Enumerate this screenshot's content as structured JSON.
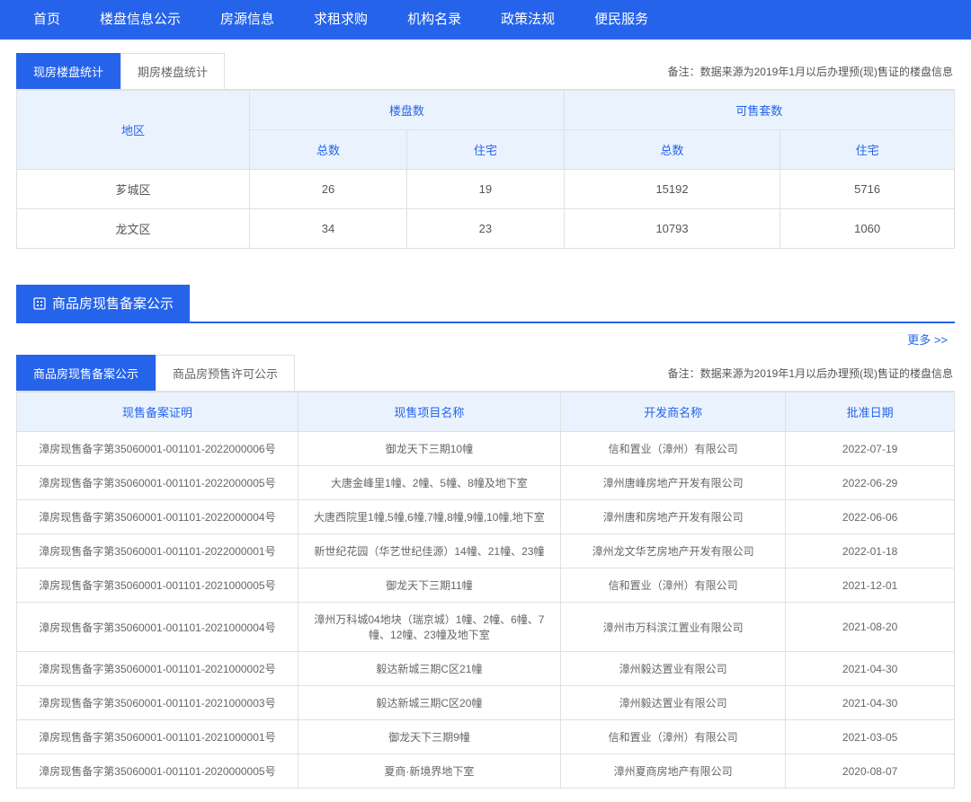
{
  "nav": {
    "items": [
      "首页",
      "楼盘信息公示",
      "房源信息",
      "求租求购",
      "机构名录",
      "政策法规",
      "便民服务"
    ]
  },
  "statsSection": {
    "tabs": {
      "active": "现房楼盘统计",
      "inactive": "期房楼盘统计"
    },
    "note": "备注：数据来源为2019年1月以后办理预(现)售证的楼盘信息",
    "headers": {
      "region": "地区",
      "buildings": "楼盘数",
      "available": "可售套数",
      "total": "总数",
      "residential": "住宅"
    },
    "rows": [
      {
        "region": "芗城区",
        "bTotal": "26",
        "bRes": "19",
        "aTotal": "15192",
        "aRes": "5716"
      },
      {
        "region": "龙文区",
        "bTotal": "34",
        "bRes": "23",
        "aTotal": "10793",
        "aRes": "1060"
      }
    ]
  },
  "recordsSection": {
    "title": "商品房现售备案公示",
    "moreLabel": "更多 >>",
    "tabs": {
      "active": "商品房现售备案公示",
      "inactive": "商品房预售许可公示"
    },
    "note": "备注：数据来源为2019年1月以后办理预(现)售证的楼盘信息",
    "headers": {
      "cert": "现售备案证明",
      "project": "现售项目名称",
      "developer": "开发商名称",
      "date": "批准日期"
    },
    "rows": [
      {
        "cert": "漳房现售备字第35060001-001101-2022000006号",
        "project": "御龙天下三期10幢",
        "developer": "信和置业（漳州）有限公司",
        "date": "2022-07-19"
      },
      {
        "cert": "漳房现售备字第35060001-001101-2022000005号",
        "project": "大唐金峰里1幢、2幢、5幢、8幢及地下室",
        "developer": "漳州唐峰房地产开发有限公司",
        "date": "2022-06-29"
      },
      {
        "cert": "漳房现售备字第35060001-001101-2022000004号",
        "project": "大唐西院里1幢,5幢,6幢,7幢,8幢,9幢,10幢,地下室",
        "developer": "漳州唐和房地产开发有限公司",
        "date": "2022-06-06"
      },
      {
        "cert": "漳房现售备字第35060001-001101-2022000001号",
        "project": "新世纪花园（华艺世纪佳源）14幢、21幢、23幢",
        "developer": "漳州龙文华艺房地产开发有限公司",
        "date": "2022-01-18"
      },
      {
        "cert": "漳房现售备字第35060001-001101-2021000005号",
        "project": "御龙天下三期11幢",
        "developer": "信和置业（漳州）有限公司",
        "date": "2021-12-01"
      },
      {
        "cert": "漳房现售备字第35060001-001101-2021000004号",
        "project": "漳州万科城04地块（瑞京城）1幢、2幢、6幢、7幢、12幢、23幢及地下室",
        "developer": "漳州市万科滨江置业有限公司",
        "date": "2021-08-20"
      },
      {
        "cert": "漳房现售备字第35060001-001101-2021000002号",
        "project": "毅达新城三期C区21幢",
        "developer": "漳州毅达置业有限公司",
        "date": "2021-04-30"
      },
      {
        "cert": "漳房现售备字第35060001-001101-2021000003号",
        "project": "毅达新城三期C区20幢",
        "developer": "漳州毅达置业有限公司",
        "date": "2021-04-30"
      },
      {
        "cert": "漳房现售备字第35060001-001101-2021000001号",
        "project": "御龙天下三期9幢",
        "developer": "信和置业（漳州）有限公司",
        "date": "2021-03-05"
      },
      {
        "cert": "漳房现售备字第35060001-001101-2020000005号",
        "project": "夏商·新境界地下室",
        "developer": "漳州夏商房地产有限公司",
        "date": "2020-08-07"
      }
    ]
  },
  "colors": {
    "primary": "#2563eb",
    "headerBg": "#eaf3fd",
    "border": "#e0e0e0",
    "text": "#555"
  }
}
